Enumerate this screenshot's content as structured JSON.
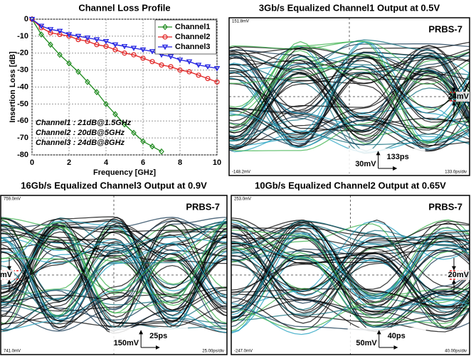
{
  "chart_data": [
    {
      "type": "line",
      "title": "Channel Loss Profile",
      "xlabel": "Frequency [GHz]",
      "ylabel": "Insertion Loss [dB]",
      "x": [
        0,
        0.5,
        1,
        1.5,
        2,
        2.5,
        3,
        3.5,
        4,
        4.5,
        5,
        5.5,
        6,
        6.5,
        7,
        7.5,
        8,
        8.5,
        9,
        9.5,
        10
      ],
      "series": [
        {
          "name": "Channel1",
          "color": "#1e8a1e",
          "marker": "diamond",
          "values": [
            0,
            -9,
            -15,
            -21,
            -26,
            -31,
            -37,
            -43,
            -50,
            -56,
            -62,
            -67,
            -72,
            -75,
            -78,
            null,
            null,
            null,
            null,
            null,
            null
          ]
        },
        {
          "name": "Channel2",
          "color": "#e02020",
          "marker": "circle",
          "values": [
            0,
            -5,
            -8,
            -9,
            -10,
            -12,
            -13,
            -15,
            -16,
            -18,
            -20,
            -21,
            -23,
            -25,
            -27,
            -28,
            -30,
            -31,
            -33,
            -35,
            -37
          ]
        },
        {
          "name": "Channel3",
          "color": "#1a1ae0",
          "marker": "triangle",
          "values": [
            0,
            -4,
            -6,
            -7,
            -9,
            -10,
            -11,
            -12,
            -13,
            -15,
            -16,
            -17,
            -18,
            -19,
            -21,
            -22,
            -24,
            -25,
            -27,
            -28,
            -29
          ]
        }
      ],
      "xlim": [
        0,
        10
      ],
      "xticks": [
        0,
        2,
        4,
        6,
        8,
        10
      ],
      "ylim": [
        -80,
        0
      ],
      "yticks": [
        0,
        -10,
        -20,
        -30,
        -40,
        -50,
        -60,
        -70,
        -80
      ],
      "grid": true,
      "legend": "upper right",
      "annotations": [
        "Channel1 : 21dB@1.5GHz",
        "Channel2 : 20dB@5GHz",
        "Channel3 : 24dB@8GHz"
      ]
    },
    {
      "type": "eye",
      "title": "3Gb/s Equalized Channel1 Output at 0.5V",
      "pattern": "PRBS-7",
      "top_label": "151.8mV",
      "bottom_label": "-148.2mV",
      "time_div": "133.0ps/div",
      "v_scale": "30mV",
      "t_scale": "133ps",
      "opening": "24mV"
    },
    {
      "type": "eye",
      "title": "16Gb/s Equalized Channel3 Output at 0.9V",
      "pattern": "PRBS-7",
      "top_label": "759.0mV",
      "bottom_label": "741.0mV",
      "time_div": "25.00ps/div",
      "v_scale": "150mV",
      "t_scale": "25ps",
      "opening": "mV"
    },
    {
      "type": "eye",
      "title": "10Gb/s Equalized Channel2 Output at 0.65V",
      "pattern": "PRBS-7",
      "top_label": "253.0mV",
      "bottom_label": "-247.0mV",
      "time_div": "40.00ps/div",
      "v_scale": "50mV",
      "t_scale": "40ps",
      "opening": "20mV"
    }
  ]
}
